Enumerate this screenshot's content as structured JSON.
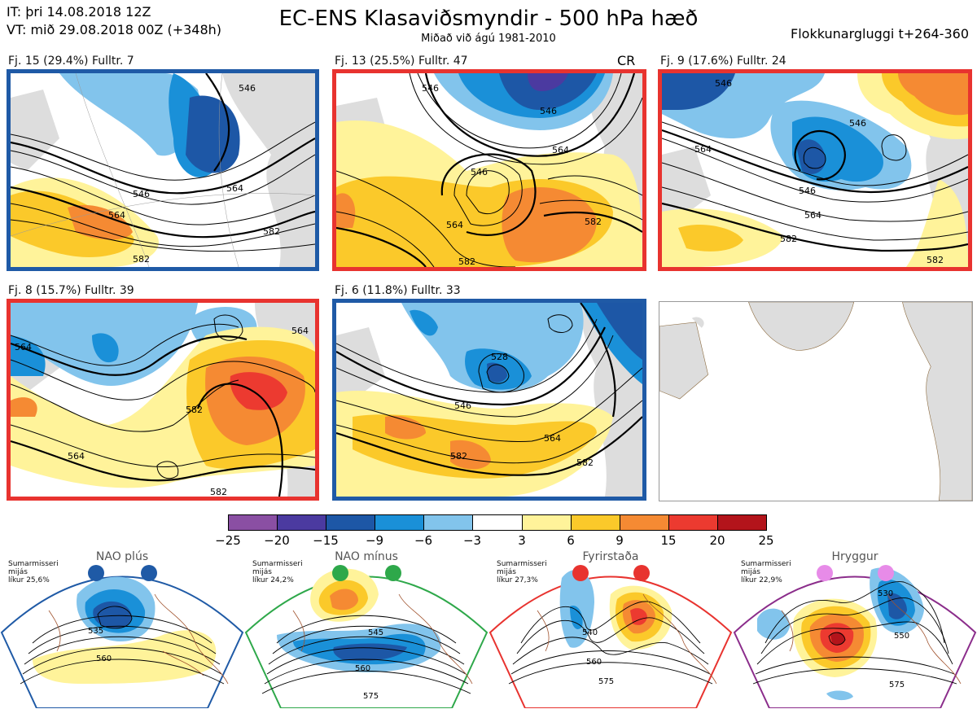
{
  "header": {
    "it_line": "IT: þri 14.08.2018 12Z",
    "vt_line": "VT: mið 29.08.2018 00Z  (+348h)",
    "title": "EC-ENS Klasaviðsmyndir - 500 hPa hæð",
    "subtitle": "Miðað við ágú 1981-2010",
    "window": "Flokkunargluggi t+264-360"
  },
  "panels": [
    {
      "label": "Fj. 15 (29.4%)   Fulltr. 7",
      "border": "#1f5aa6",
      "contours": [
        "546",
        "564",
        "564",
        "582",
        "564"
      ],
      "extra": ""
    },
    {
      "label": "Fj. 13 (25.5%)   Fulltr. 47",
      "border": "#e8332f",
      "contours": [
        "546",
        "546",
        "564",
        "582",
        "582"
      ],
      "extra": "CR"
    },
    {
      "label": "Fj. 9 (17.6%)   Fulltr. 24",
      "border": "#e8332f",
      "contours": [
        "546",
        "564",
        "546",
        "564",
        "582",
        "582"
      ],
      "extra": ""
    },
    {
      "label": "Fj. 8 (15.7%)   Fulltr. 39",
      "border": "#e8332f",
      "contours": [
        "564",
        "564",
        "582",
        "582",
        "564"
      ],
      "extra": ""
    },
    {
      "label": "Fj. 6 (11.8%)   Fulltr. 33",
      "border": "#1f5aa6",
      "contours": [
        "528",
        "546",
        "564",
        "582",
        "582"
      ],
      "extra": ""
    }
  ],
  "colorbar": {
    "ticks": [
      "−25",
      "−20",
      "−15",
      "−9",
      "−6",
      "−3",
      "3",
      "6",
      "9",
      "15",
      "20",
      "25"
    ],
    "colors": [
      "#8a4fa3",
      "#4b3aa0",
      "#1d57a6",
      "#1a90d8",
      "#82c4ec",
      "#ffffff",
      "#fff39a",
      "#fbc92a",
      "#f58a33",
      "#ec3a30",
      "#b3141b"
    ]
  },
  "regimes": [
    {
      "name": "NAO plús",
      "info": [
        "Sumarmisseri",
        "mijás",
        "líkur 25,6%"
      ],
      "color": "#1f5aa6",
      "contours": [
        "535",
        "560"
      ]
    },
    {
      "name": "NAO mínus",
      "info": [
        "Sumarmisseri",
        "mijás",
        "líkur 24,2%"
      ],
      "color": "#2ea84a",
      "contours": [
        "545",
        "560",
        "575"
      ]
    },
    {
      "name": "Fyrirstaða",
      "info": [
        "Sumarmisseri",
        "mijás",
        "líkur 27,3%"
      ],
      "color": "#e8332f",
      "contours": [
        "540",
        "560",
        "575"
      ]
    },
    {
      "name": "Hryggur",
      "info": [
        "Sumarmisseri",
        "mijás",
        "líkur 22,9%"
      ],
      "color": "#8b2d8b",
      "contours": [
        "530",
        "550",
        "575"
      ]
    }
  ]
}
